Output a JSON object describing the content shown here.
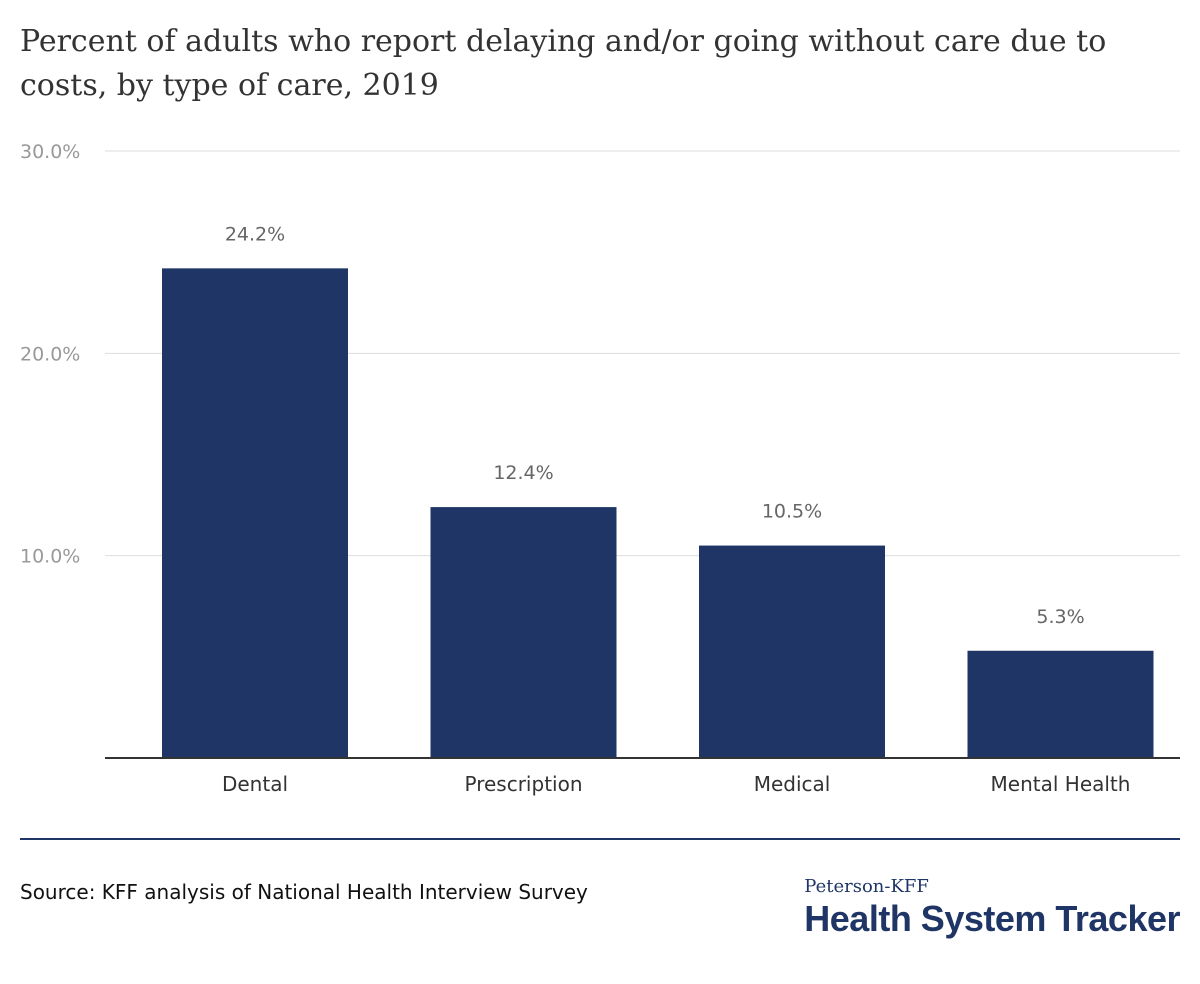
{
  "chart_data": {
    "type": "bar",
    "title": "Percent of adults who report delaying and/or going without care due to costs, by type of care, 2019",
    "categories": [
      "Dental",
      "Prescription",
      "Medical",
      "Mental Health"
    ],
    "values": [
      24.2,
      12.4,
      10.5,
      5.3
    ],
    "value_labels": [
      "24.2%",
      "12.4%",
      "10.5%",
      "5.3%"
    ],
    "yticks": [
      10,
      20,
      30
    ],
    "ytick_labels": [
      "10.0%",
      "20.0%",
      "30.0%"
    ],
    "ylim": [
      0,
      30
    ],
    "xlabel": "",
    "ylabel": "",
    "grid": true,
    "bar_color": "#1f3566"
  },
  "footer": {
    "source": "Source: KFF analysis of National Health Interview Survey",
    "logo_top": "Peterson-KFF",
    "logo_bottom": "Health System Tracker"
  }
}
